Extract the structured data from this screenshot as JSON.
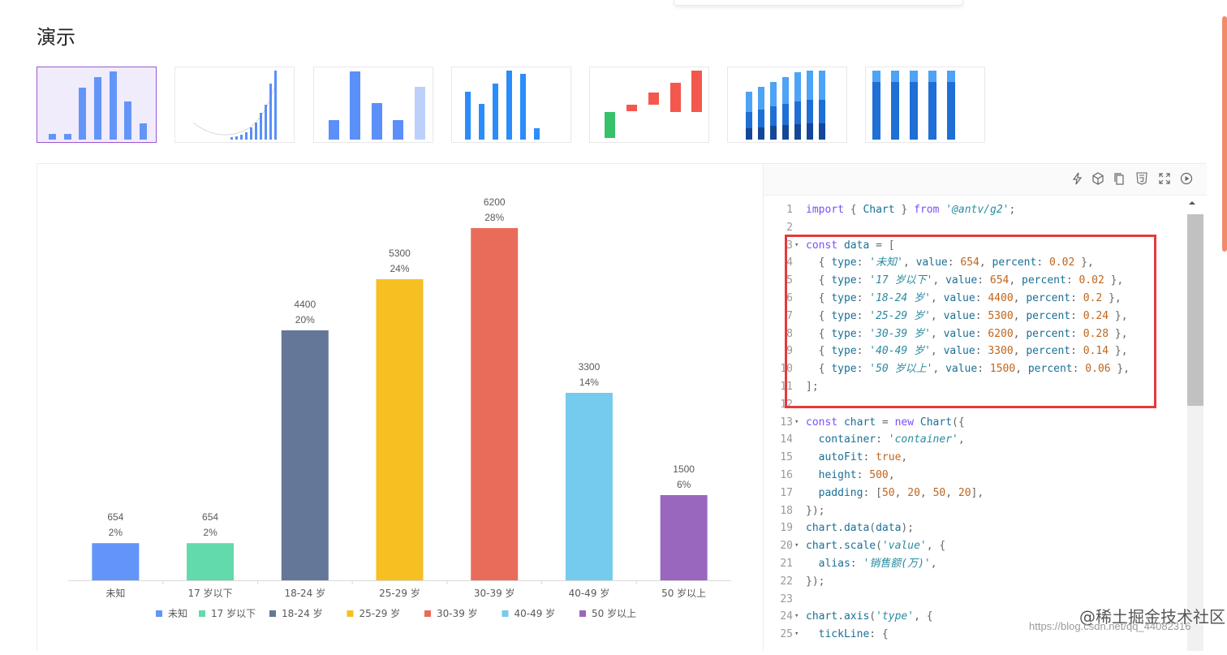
{
  "page": {
    "title": "演示"
  },
  "chart_data": {
    "type": "bar",
    "categories": [
      "未知",
      "17 岁以下",
      "18-24 岁",
      "25-29 岁",
      "30-39 岁",
      "40-49 岁",
      "50 岁以上"
    ],
    "values": [
      654,
      654,
      4400,
      5300,
      6200,
      3300,
      1500
    ],
    "percent_labels": [
      "2%",
      "2%",
      "20%",
      "24%",
      "28%",
      "14%",
      "6%"
    ],
    "colors": [
      "#6395f9",
      "#62daab",
      "#657798",
      "#f6c022",
      "#e96c5b",
      "#74cbed",
      "#9967bd"
    ],
    "ylim": [
      0,
      6200
    ],
    "legend": {
      "position": "bottom"
    },
    "xlabel": "",
    "ylabel": "",
    "title": ""
  },
  "editor": {
    "toolbar_icons": [
      "bolt-icon",
      "cube-icon",
      "copy-icon",
      "html5-icon",
      "fullscreen-icon",
      "play-icon"
    ],
    "lines": [
      {
        "n": "1",
        "fold": "",
        "tokens": [
          [
            "kw",
            "import"
          ],
          [
            "punc",
            " { "
          ],
          [
            "fn",
            "Chart"
          ],
          [
            "punc",
            " } "
          ],
          [
            "kw",
            "from"
          ],
          [
            "punc",
            " "
          ],
          [
            "str",
            "'@antv/g2'"
          ],
          [
            "punc",
            ";"
          ]
        ]
      },
      {
        "n": "2",
        "fold": "",
        "tokens": []
      },
      {
        "n": "3",
        "fold": "▾",
        "tokens": [
          [
            "kw",
            "const"
          ],
          [
            "punc",
            " "
          ],
          [
            "fn",
            "data"
          ],
          [
            "punc",
            " = ["
          ]
        ]
      },
      {
        "n": "4",
        "fold": "",
        "tokens": [
          [
            "punc",
            "  { "
          ],
          [
            "prop",
            "type"
          ],
          [
            "punc",
            ": "
          ],
          [
            "str",
            "'未知'"
          ],
          [
            "punc",
            ", "
          ],
          [
            "prop",
            "value"
          ],
          [
            "punc",
            ": "
          ],
          [
            "num",
            "654"
          ],
          [
            "punc",
            ", "
          ],
          [
            "prop",
            "percent"
          ],
          [
            "punc",
            ": "
          ],
          [
            "num",
            "0.02"
          ],
          [
            "punc",
            " },"
          ]
        ]
      },
      {
        "n": "5",
        "fold": "",
        "tokens": [
          [
            "punc",
            "  { "
          ],
          [
            "prop",
            "type"
          ],
          [
            "punc",
            ": "
          ],
          [
            "str",
            "'17 岁以下'"
          ],
          [
            "punc",
            ", "
          ],
          [
            "prop",
            "value"
          ],
          [
            "punc",
            ": "
          ],
          [
            "num",
            "654"
          ],
          [
            "punc",
            ", "
          ],
          [
            "prop",
            "percent"
          ],
          [
            "punc",
            ": "
          ],
          [
            "num",
            "0.02"
          ],
          [
            "punc",
            " },"
          ]
        ]
      },
      {
        "n": "6",
        "fold": "",
        "tokens": [
          [
            "punc",
            "  { "
          ],
          [
            "prop",
            "type"
          ],
          [
            "punc",
            ": "
          ],
          [
            "str",
            "'18-24 岁'"
          ],
          [
            "punc",
            ", "
          ],
          [
            "prop",
            "value"
          ],
          [
            "punc",
            ": "
          ],
          [
            "num",
            "4400"
          ],
          [
            "punc",
            ", "
          ],
          [
            "prop",
            "percent"
          ],
          [
            "punc",
            ": "
          ],
          [
            "num",
            "0.2"
          ],
          [
            "punc",
            " },"
          ]
        ]
      },
      {
        "n": "7",
        "fold": "",
        "tokens": [
          [
            "punc",
            "  { "
          ],
          [
            "prop",
            "type"
          ],
          [
            "punc",
            ": "
          ],
          [
            "str",
            "'25-29 岁'"
          ],
          [
            "punc",
            ", "
          ],
          [
            "prop",
            "value"
          ],
          [
            "punc",
            ": "
          ],
          [
            "num",
            "5300"
          ],
          [
            "punc",
            ", "
          ],
          [
            "prop",
            "percent"
          ],
          [
            "punc",
            ": "
          ],
          [
            "num",
            "0.24"
          ],
          [
            "punc",
            " },"
          ]
        ]
      },
      {
        "n": "8",
        "fold": "",
        "tokens": [
          [
            "punc",
            "  { "
          ],
          [
            "prop",
            "type"
          ],
          [
            "punc",
            ": "
          ],
          [
            "str",
            "'30-39 岁'"
          ],
          [
            "punc",
            ", "
          ],
          [
            "prop",
            "value"
          ],
          [
            "punc",
            ": "
          ],
          [
            "num",
            "6200"
          ],
          [
            "punc",
            ", "
          ],
          [
            "prop",
            "percent"
          ],
          [
            "punc",
            ": "
          ],
          [
            "num",
            "0.28"
          ],
          [
            "punc",
            " },"
          ]
        ]
      },
      {
        "n": "9",
        "fold": "",
        "tokens": [
          [
            "punc",
            "  { "
          ],
          [
            "prop",
            "type"
          ],
          [
            "punc",
            ": "
          ],
          [
            "str",
            "'40-49 岁'"
          ],
          [
            "punc",
            ", "
          ],
          [
            "prop",
            "value"
          ],
          [
            "punc",
            ": "
          ],
          [
            "num",
            "3300"
          ],
          [
            "punc",
            ", "
          ],
          [
            "prop",
            "percent"
          ],
          [
            "punc",
            ": "
          ],
          [
            "num",
            "0.14"
          ],
          [
            "punc",
            " },"
          ]
        ]
      },
      {
        "n": "10",
        "fold": "",
        "tokens": [
          [
            "punc",
            "  { "
          ],
          [
            "prop",
            "type"
          ],
          [
            "punc",
            ": "
          ],
          [
            "str",
            "'50 岁以上'"
          ],
          [
            "punc",
            ", "
          ],
          [
            "prop",
            "value"
          ],
          [
            "punc",
            ": "
          ],
          [
            "num",
            "1500"
          ],
          [
            "punc",
            ", "
          ],
          [
            "prop",
            "percent"
          ],
          [
            "punc",
            ": "
          ],
          [
            "num",
            "0.06"
          ],
          [
            "punc",
            " },"
          ]
        ]
      },
      {
        "n": "11",
        "fold": "",
        "tokens": [
          [
            "punc",
            "];"
          ]
        ]
      },
      {
        "n": "12",
        "fold": "",
        "tokens": []
      },
      {
        "n": "13",
        "fold": "▾",
        "tokens": [
          [
            "kw",
            "const"
          ],
          [
            "punc",
            " "
          ],
          [
            "fn",
            "chart"
          ],
          [
            "punc",
            " = "
          ],
          [
            "kw",
            "new"
          ],
          [
            "punc",
            " "
          ],
          [
            "fn",
            "Chart"
          ],
          [
            "punc",
            "({"
          ]
        ]
      },
      {
        "n": "14",
        "fold": "",
        "tokens": [
          [
            "punc",
            "  "
          ],
          [
            "prop",
            "container"
          ],
          [
            "punc",
            ": "
          ],
          [
            "str",
            "'container'"
          ],
          [
            "punc",
            ","
          ]
        ]
      },
      {
        "n": "15",
        "fold": "",
        "tokens": [
          [
            "punc",
            "  "
          ],
          [
            "prop",
            "autoFit"
          ],
          [
            "punc",
            ": "
          ],
          [
            "bool",
            "true"
          ],
          [
            "punc",
            ","
          ]
        ]
      },
      {
        "n": "16",
        "fold": "",
        "tokens": [
          [
            "punc",
            "  "
          ],
          [
            "prop",
            "height"
          ],
          [
            "punc",
            ": "
          ],
          [
            "num",
            "500"
          ],
          [
            "punc",
            ","
          ]
        ]
      },
      {
        "n": "17",
        "fold": "",
        "tokens": [
          [
            "punc",
            "  "
          ],
          [
            "prop",
            "padding"
          ],
          [
            "punc",
            ": ["
          ],
          [
            "num",
            "50"
          ],
          [
            "punc",
            ", "
          ],
          [
            "num",
            "20"
          ],
          [
            "punc",
            ", "
          ],
          [
            "num",
            "50"
          ],
          [
            "punc",
            ", "
          ],
          [
            "num",
            "20"
          ],
          [
            "punc",
            "],"
          ]
        ]
      },
      {
        "n": "18",
        "fold": "",
        "tokens": [
          [
            "punc",
            "});"
          ]
        ]
      },
      {
        "n": "19",
        "fold": "",
        "tokens": [
          [
            "fn",
            "chart"
          ],
          [
            "punc",
            "."
          ],
          [
            "fn",
            "data"
          ],
          [
            "punc",
            "("
          ],
          [
            "fn",
            "data"
          ],
          [
            "punc",
            ");"
          ]
        ]
      },
      {
        "n": "20",
        "fold": "▾",
        "tokens": [
          [
            "fn",
            "chart"
          ],
          [
            "punc",
            "."
          ],
          [
            "fn",
            "scale"
          ],
          [
            "punc",
            "("
          ],
          [
            "str",
            "'value'"
          ],
          [
            "punc",
            ", {"
          ]
        ]
      },
      {
        "n": "21",
        "fold": "",
        "tokens": [
          [
            "punc",
            "  "
          ],
          [
            "prop",
            "alias"
          ],
          [
            "punc",
            ": "
          ],
          [
            "str",
            "'销售额(万)'"
          ],
          [
            "punc",
            ","
          ]
        ]
      },
      {
        "n": "22",
        "fold": "",
        "tokens": [
          [
            "punc",
            "});"
          ]
        ]
      },
      {
        "n": "23",
        "fold": "",
        "tokens": []
      },
      {
        "n": "24",
        "fold": "▾",
        "tokens": [
          [
            "fn",
            "chart"
          ],
          [
            "punc",
            "."
          ],
          [
            "fn",
            "axis"
          ],
          [
            "punc",
            "("
          ],
          [
            "str",
            "'type'"
          ],
          [
            "punc",
            ", {"
          ]
        ]
      },
      {
        "n": "25",
        "fold": "▾",
        "tokens": [
          [
            "punc",
            "  "
          ],
          [
            "prop",
            "tickLine"
          ],
          [
            "punc",
            ": {"
          ]
        ]
      }
    ]
  },
  "watermark": {
    "main": "@稀土掘金技术社区",
    "sub": "https://blog.csdn.net/qq_44082316"
  }
}
